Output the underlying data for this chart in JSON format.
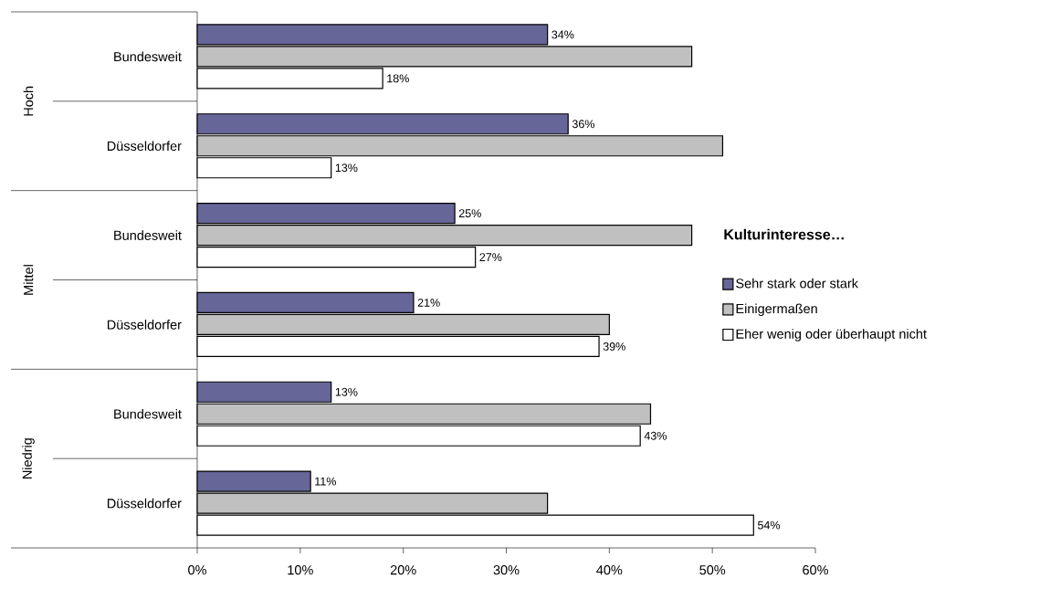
{
  "chart_data": {
    "type": "bar",
    "orientation": "horizontal",
    "categories": [
      "Bundesweit",
      "Düsseldorfer",
      "Bundesweit",
      "Düsseldorfer",
      "Bundesweit",
      "Düsseldorfer"
    ],
    "annotations": [
      "Hoch",
      "Mittel",
      "Niedrig"
    ],
    "series": [
      {
        "name": "Sehr stark oder stark",
        "color": "#666699",
        "values": [
          34,
          36,
          25,
          21,
          13,
          11
        ],
        "value_labels": [
          "34%",
          "36%",
          "25%",
          "21%",
          "13%",
          "11%"
        ]
      },
      {
        "name": "Einigermaßen",
        "color": "#c0c0c0",
        "values": [
          48,
          51,
          48,
          40,
          44,
          34
        ]
      },
      {
        "name": "Eher wenig oder überhaupt nicht",
        "color": "#ffffff",
        "values": [
          18,
          13,
          27,
          39,
          43,
          54
        ],
        "value_labels": [
          "18%",
          "13%",
          "27%",
          "39%",
          "43%",
          "54%"
        ]
      }
    ],
    "xlim": [
      0,
      60
    ],
    "xticks": [
      {
        "value": 0,
        "label": "0%"
      },
      {
        "value": 10,
        "label": "10%"
      },
      {
        "value": 20,
        "label": "20%"
      },
      {
        "value": 30,
        "label": "30%"
      },
      {
        "value": 40,
        "label": "40%"
      },
      {
        "value": 50,
        "label": "50%"
      },
      {
        "value": 60,
        "label": "60%"
      }
    ],
    "legend": "right",
    "legend_title": "Kulturinteresse…"
  }
}
